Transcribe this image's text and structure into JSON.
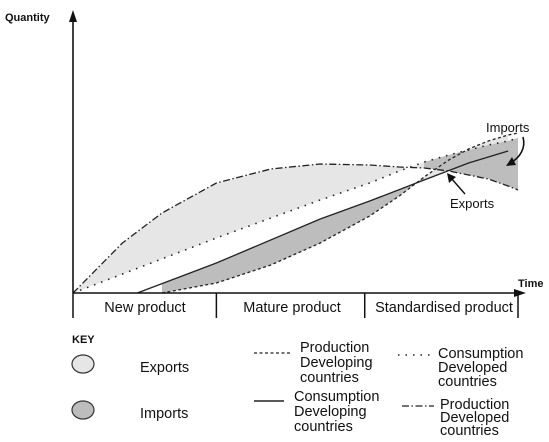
{
  "chart_data": {
    "type": "line",
    "title": "",
    "ylabel": "Quantity",
    "xlabel": "Time",
    "xlim": [
      0,
      450
    ],
    "ylim": [
      0,
      270
    ],
    "grid": false,
    "stages": [
      {
        "label": "New product",
        "start": 0,
        "end": 145
      },
      {
        "label": "Mature product",
        "start": 145,
        "end": 295
      },
      {
        "label": "Standardised product",
        "start": 295,
        "end": 450
      }
    ],
    "series": [
      {
        "key": "production_developed",
        "name": "Production Developed countries",
        "style": "dashdot",
        "x": [
          0,
          50,
          90,
          145,
          200,
          250,
          300,
          330,
          355,
          380,
          400,
          420,
          440,
          450
        ],
        "y": [
          0,
          50,
          80,
          110,
          124,
          129,
          128,
          126,
          125,
          122,
          118,
          114,
          107,
          103
        ]
      },
      {
        "key": "consumption_developed",
        "name": "Consumption Developed countries",
        "style": "dotted",
        "x": [
          0,
          145,
          250,
          300,
          330,
          355,
          380,
          400,
          420,
          440,
          450
        ],
        "y": [
          0,
          55,
          93,
          110,
          122,
          131,
          138,
          143,
          148,
          152,
          155
        ]
      },
      {
        "key": "consumption_developing",
        "name": "Consumption Developing countries",
        "style": "solid",
        "x": [
          65,
          145,
          250,
          300,
          355,
          400,
          440
        ],
        "y": [
          0,
          30,
          74,
          92,
          113,
          130,
          142
        ]
      },
      {
        "key": "production_developing",
        "name": "Production Developing countries",
        "style": "dashed",
        "x": [
          90,
          145,
          200,
          250,
          300,
          330,
          355,
          380,
          400,
          420,
          440,
          450
        ],
        "y": [
          0,
          10,
          28,
          50,
          77,
          97,
          116,
          133,
          144,
          152,
          158,
          160
        ]
      }
    ],
    "regions": [
      {
        "name": "Exports",
        "between": [
          "production_developed",
          "consumption_developed"
        ],
        "x_range": [
          0,
          355
        ]
      },
      {
        "name": "Exports",
        "between": [
          "production_developing",
          "consumption_developing"
        ],
        "x_range": [
          355,
          440
        ]
      },
      {
        "name": "Imports",
        "between": [
          "production_developing",
          "consumption_developing"
        ],
        "x_range": [
          90,
          355
        ]
      },
      {
        "name": "Imports",
        "between": [
          "consumption_developed",
          "production_developed"
        ],
        "x_range": [
          355,
          450
        ]
      }
    ],
    "annotations": [
      {
        "text": "Imports"
      },
      {
        "text": "Exports"
      }
    ],
    "colors": {
      "exports": "#e6e6e6",
      "imports": "#bdbdbd",
      "line": "#222222"
    }
  },
  "key": {
    "title": "KEY",
    "swatches": [
      {
        "label": "Exports"
      },
      {
        "label": "Imports"
      }
    ],
    "lines": [
      {
        "line1": "Production",
        "line2": "Developing",
        "line3": "countries"
      },
      {
        "line1": "Consumption",
        "line2": "Developed",
        "line3": "countries"
      },
      {
        "line1": "Consumption",
        "line2": "Developing",
        "line3": "countries"
      },
      {
        "line1": "Production",
        "line2": "Developed",
        "line3": "countries"
      }
    ]
  }
}
